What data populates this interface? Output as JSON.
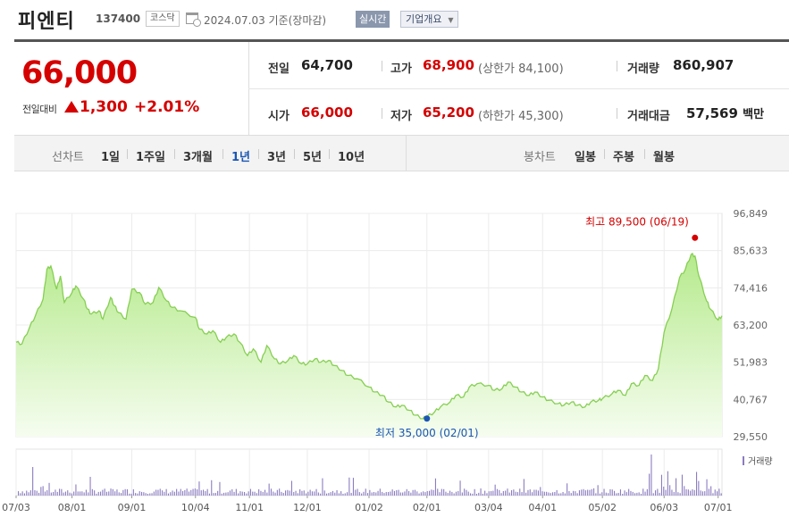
{
  "header": {
    "name": "피엔티",
    "code": "137400",
    "market": "코스닥",
    "date": "2024.07.03",
    "basis": "기준(장마감)",
    "realtime": "실시간",
    "overview": "기업개요"
  },
  "quote": {
    "price": "66,000",
    "change_label": "전일대비",
    "change": "1,300",
    "change_pct": "+2.01%",
    "prev_label": "전일",
    "prev": "64,700",
    "high_label": "고가",
    "high": "68,900",
    "upper_label": "(상한가",
    "upper": "84,100)",
    "volume_label": "거래량",
    "volume": "860,907",
    "open_label": "시가",
    "open": "66,000",
    "low_label": "저가",
    "low": "65,200",
    "lower_label": "(하한가",
    "lower": "45,300)",
    "amount_label": "거래대금",
    "amount": "57,569",
    "amount_unit": "백만"
  },
  "toolbar": {
    "line_label": "선차트",
    "periods": [
      "1일",
      "1주일",
      "3개월",
      "1년",
      "3년",
      "5년",
      "10년"
    ],
    "active_period": "1년",
    "candle_label": "봉차트",
    "candles": [
      "일봉",
      "주봉",
      "월봉"
    ]
  },
  "colors": {
    "up": "#d50000",
    "down": "#1a56b4",
    "area_line": "#7fcf4a",
    "area_fill": "#c9f0a8"
  },
  "chart_data": {
    "type": "area",
    "ylim": [
      29550,
      96849
    ],
    "yticks": [
      96849,
      85633,
      74416,
      63200,
      51983,
      40767,
      29550
    ],
    "yticks_text": [
      "96,849",
      "85,633",
      "74,416",
      "63,200",
      "51,983",
      "40,767",
      "29,550"
    ],
    "x_ticks": [
      "07/03",
      "08/01",
      "09/01",
      "10/04",
      "11/01",
      "12/01",
      "01/02",
      "02/01",
      "03/04",
      "04/01",
      "05/02",
      "06/03",
      "07/01"
    ],
    "x_tick_dates": [
      "2023-07-03",
      "2023-08-01",
      "2023-09-01",
      "2023-10-04",
      "2023-11-01",
      "2023-12-01",
      "2024-01-02",
      "2024-02-01",
      "2024-03-04",
      "2024-04-01",
      "2024-05-02",
      "2024-06-03",
      "2024-07-01"
    ],
    "series": [
      {
        "x": [
          "2023-07-03",
          "2023-07-06",
          "2023-07-10",
          "2023-07-13",
          "2023-07-17",
          "2023-07-19",
          "2023-07-21",
          "2023-07-24",
          "2023-07-26",
          "2023-07-28",
          "2023-08-01",
          "2023-08-03",
          "2023-08-07",
          "2023-08-09",
          "2023-08-11",
          "2023-08-15",
          "2023-08-17",
          "2023-08-21",
          "2023-08-23",
          "2023-08-25",
          "2023-08-29",
          "2023-09-01",
          "2023-09-05",
          "2023-09-08",
          "2023-09-12",
          "2023-09-15",
          "2023-09-19",
          "2023-09-22",
          "2023-09-26",
          "2023-10-04",
          "2023-10-06",
          "2023-10-10",
          "2023-10-13",
          "2023-10-17",
          "2023-10-20",
          "2023-10-24",
          "2023-10-27",
          "2023-10-31",
          "2023-11-03",
          "2023-11-07",
          "2023-11-10",
          "2023-11-14",
          "2023-11-17",
          "2023-11-21",
          "2023-11-24",
          "2023-11-28",
          "2023-12-01",
          "2023-12-05",
          "2023-12-08",
          "2023-12-12",
          "2023-12-15",
          "2023-12-19",
          "2023-12-22",
          "2023-12-27",
          "2024-01-02",
          "2024-01-05",
          "2024-01-09",
          "2024-01-12",
          "2024-01-16",
          "2024-01-19",
          "2024-01-23",
          "2024-01-26",
          "2024-01-30",
          "2024-02-01",
          "2024-02-05",
          "2024-02-08",
          "2024-02-13",
          "2024-02-16",
          "2024-02-20",
          "2024-02-23",
          "2024-02-27",
          "2024-03-04",
          "2024-03-07",
          "2024-03-11",
          "2024-03-14",
          "2024-03-18",
          "2024-03-21",
          "2024-03-25",
          "2024-03-28",
          "2024-04-01",
          "2024-04-04",
          "2024-04-09",
          "2024-04-12",
          "2024-04-16",
          "2024-04-19",
          "2024-04-23",
          "2024-04-26",
          "2024-04-30",
          "2024-05-02",
          "2024-05-07",
          "2024-05-10",
          "2024-05-14",
          "2024-05-17",
          "2024-05-21",
          "2024-05-24",
          "2024-05-28",
          "2024-05-31",
          "2024-06-03",
          "2024-06-07",
          "2024-06-11",
          "2024-06-14",
          "2024-06-17",
          "2024-06-19",
          "2024-06-21",
          "2024-06-25",
          "2024-06-27",
          "2024-07-01",
          "2024-07-03"
        ],
        "y": [
          58000,
          57500,
          62500,
          66000,
          71000,
          80000,
          81000,
          74000,
          78000,
          70000,
          73000,
          75000,
          71000,
          68000,
          66500,
          67500,
          65000,
          71500,
          69000,
          67000,
          65000,
          74000,
          73000,
          69500,
          70000,
          74500,
          70500,
          68500,
          67500,
          65500,
          62000,
          60500,
          61500,
          58000,
          59500,
          60500,
          58000,
          54000,
          56000,
          52000,
          57000,
          53000,
          51500,
          52500,
          54000,
          51500,
          51500,
          53000,
          52000,
          52500,
          51000,
          49500,
          48000,
          47000,
          44500,
          43000,
          42000,
          40000,
          38500,
          39000,
          37500,
          36000,
          35000,
          35500,
          37000,
          38500,
          40000,
          42000,
          41500,
          44500,
          45500,
          45000,
          43500,
          44000,
          46000,
          44500,
          43000,
          42000,
          43000,
          41500,
          40500,
          39500,
          39000,
          40000,
          39000,
          38500,
          40000,
          40500,
          41000,
          42500,
          43500,
          42000,
          45500,
          45000,
          48000,
          46500,
          50000,
          61000,
          68000,
          77500,
          80000,
          84500,
          84000,
          78000,
          70500,
          68000,
          64700,
          66000
        ]
      }
    ],
    "volume_legend": "거래량",
    "annotations": {
      "high": "최고 89,500 (06/19)",
      "high_value": 89500,
      "high_date": "2024-06-19",
      "low": "최저 35,000 (02/01)",
      "low_value": 35000,
      "low_date": "2024-02-01"
    }
  }
}
